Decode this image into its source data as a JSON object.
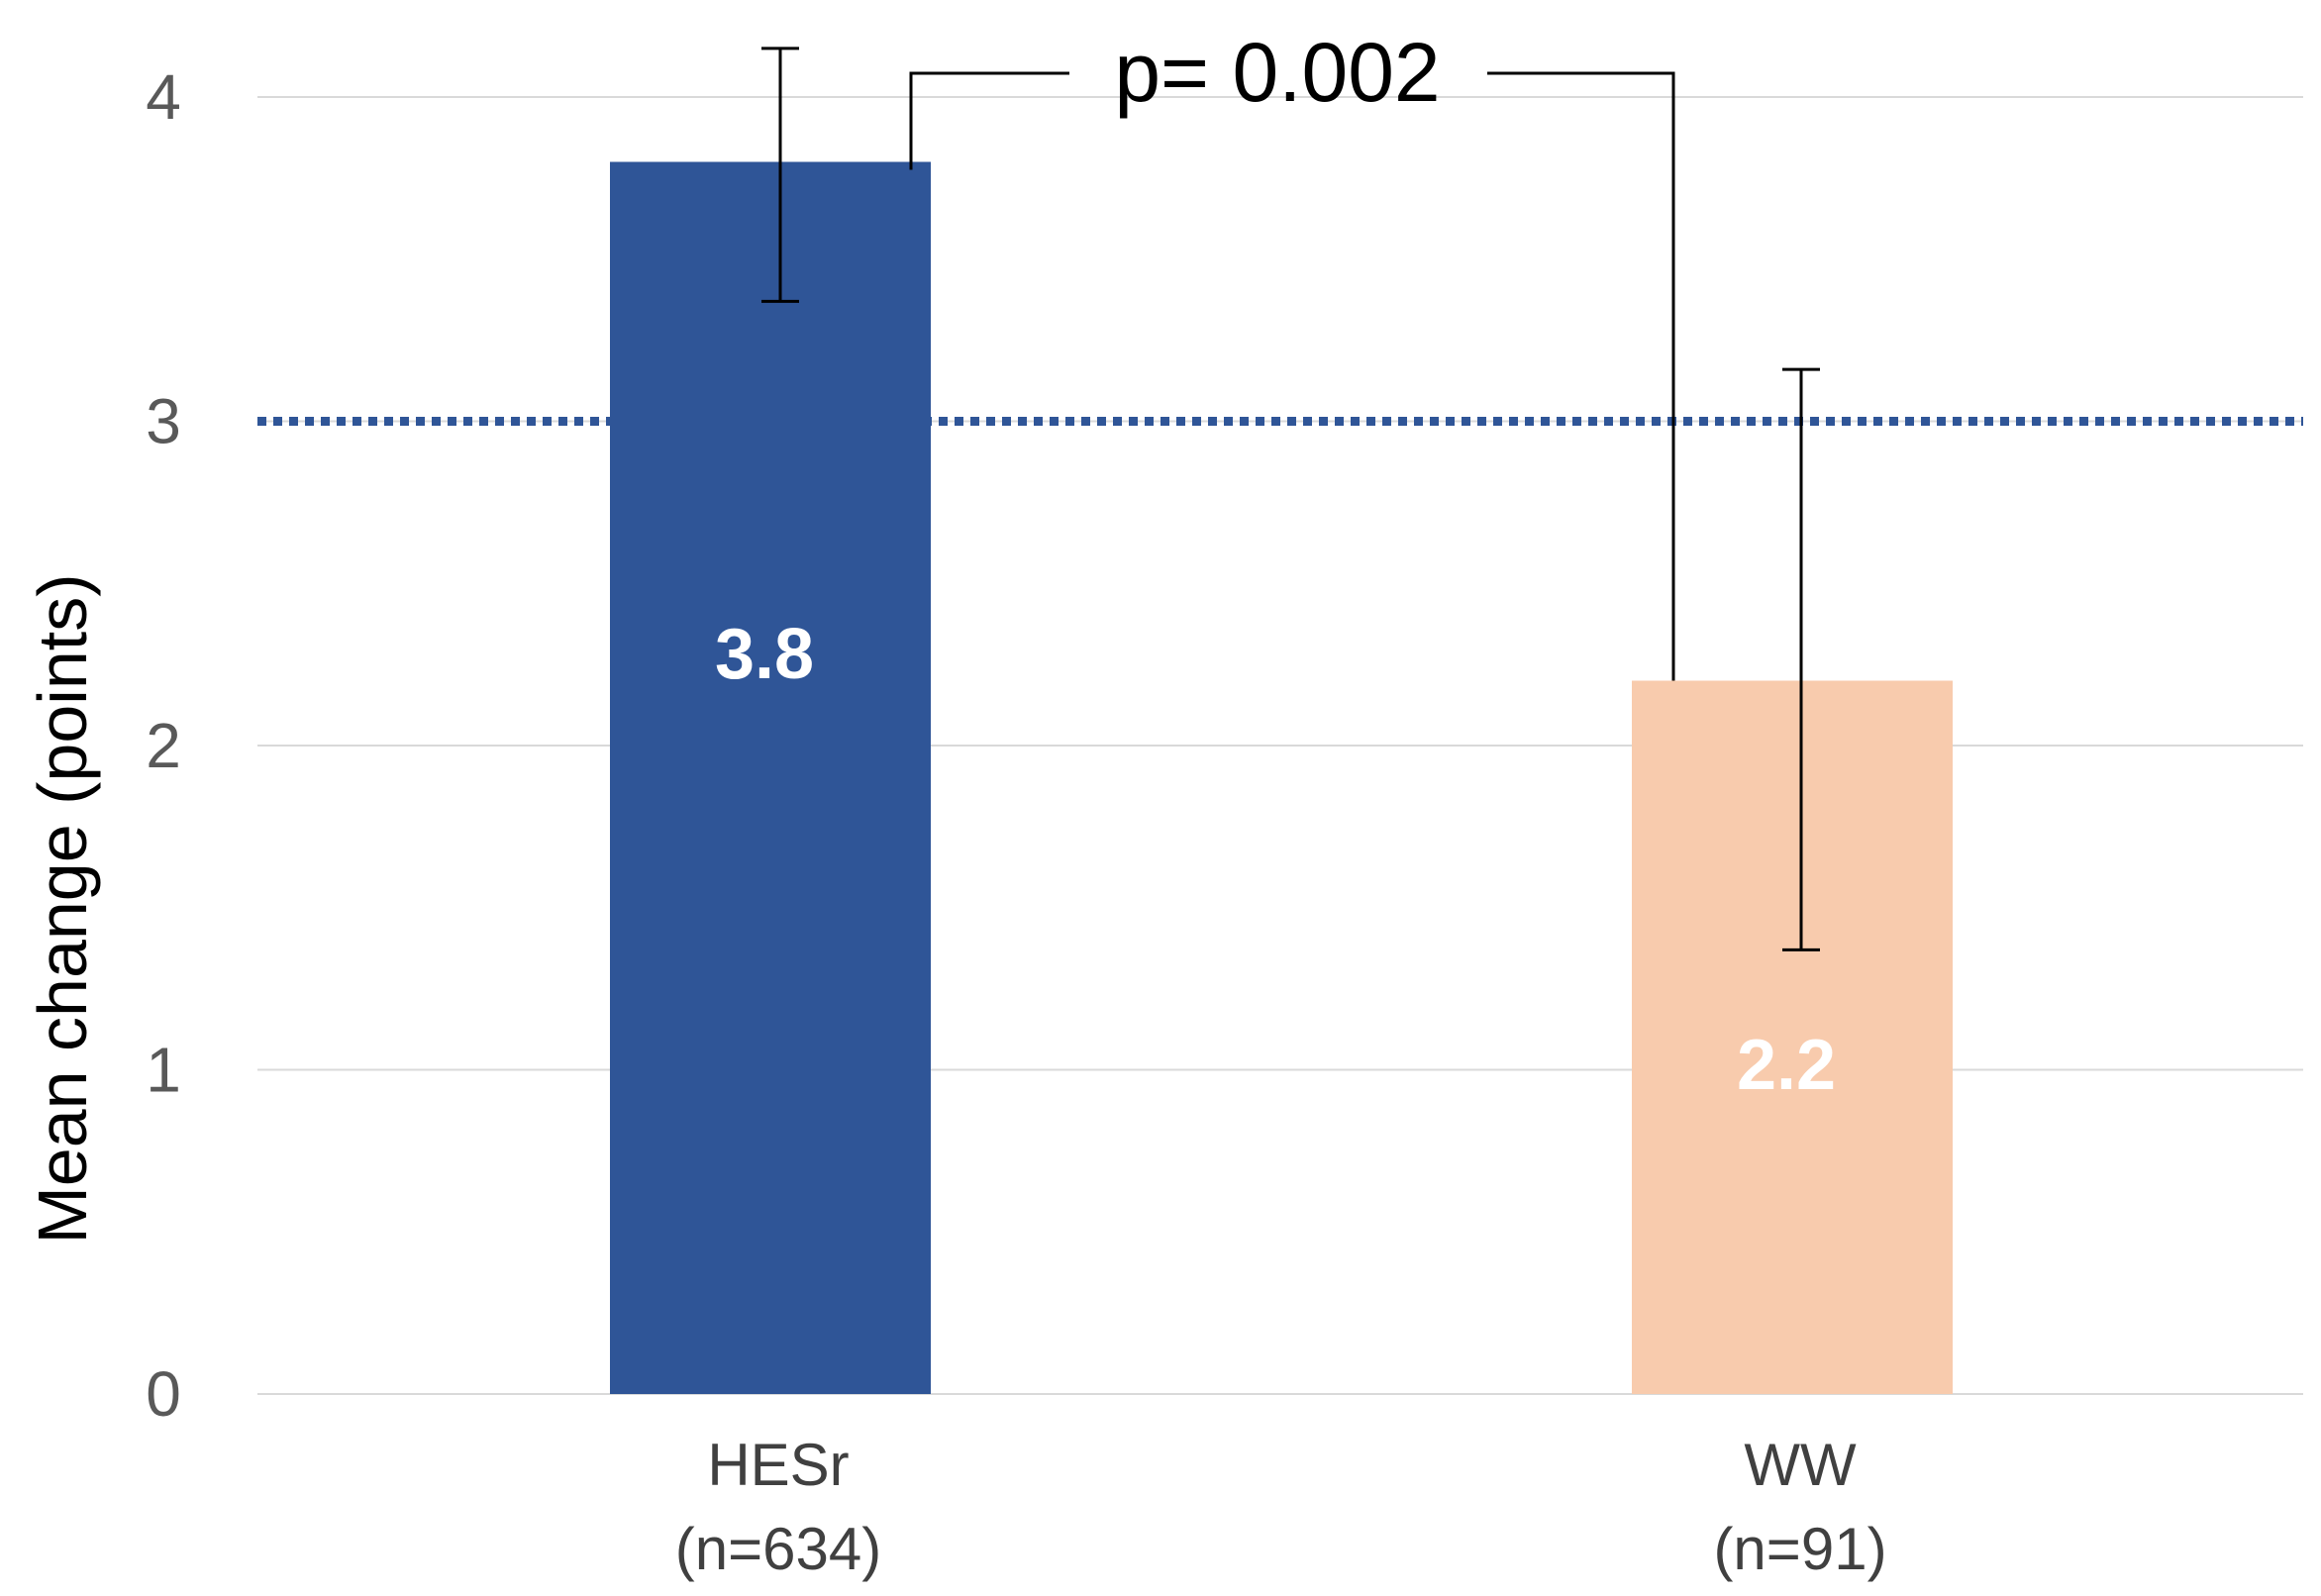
{
  "chart_data": {
    "type": "bar",
    "title": "",
    "xlabel": "",
    "ylabel": "Mean change (points)",
    "ylim": [
      0,
      4
    ],
    "yticks": [
      0,
      1,
      2,
      3,
      4
    ],
    "grid": true,
    "categories": [
      {
        "line1": "HESr",
        "line2": "(n=634)"
      },
      {
        "line1": "WW",
        "line2": "(n=91)"
      }
    ],
    "values": [
      3.8,
      2.2
    ],
    "value_labels": [
      "3.8",
      "2.2"
    ],
    "error_bars": [
      {
        "low": 3.37,
        "high": 4.15
      },
      {
        "low": 1.37,
        "high": 3.16
      }
    ],
    "colors": [
      "#2f5597",
      "#f8cbad"
    ],
    "reference_line": {
      "y": 3.0,
      "style": "dotted",
      "color": "#2f5597"
    },
    "annotation": {
      "text": "p= 0.002",
      "type": "significance-bracket",
      "between": [
        0,
        1
      ]
    }
  }
}
